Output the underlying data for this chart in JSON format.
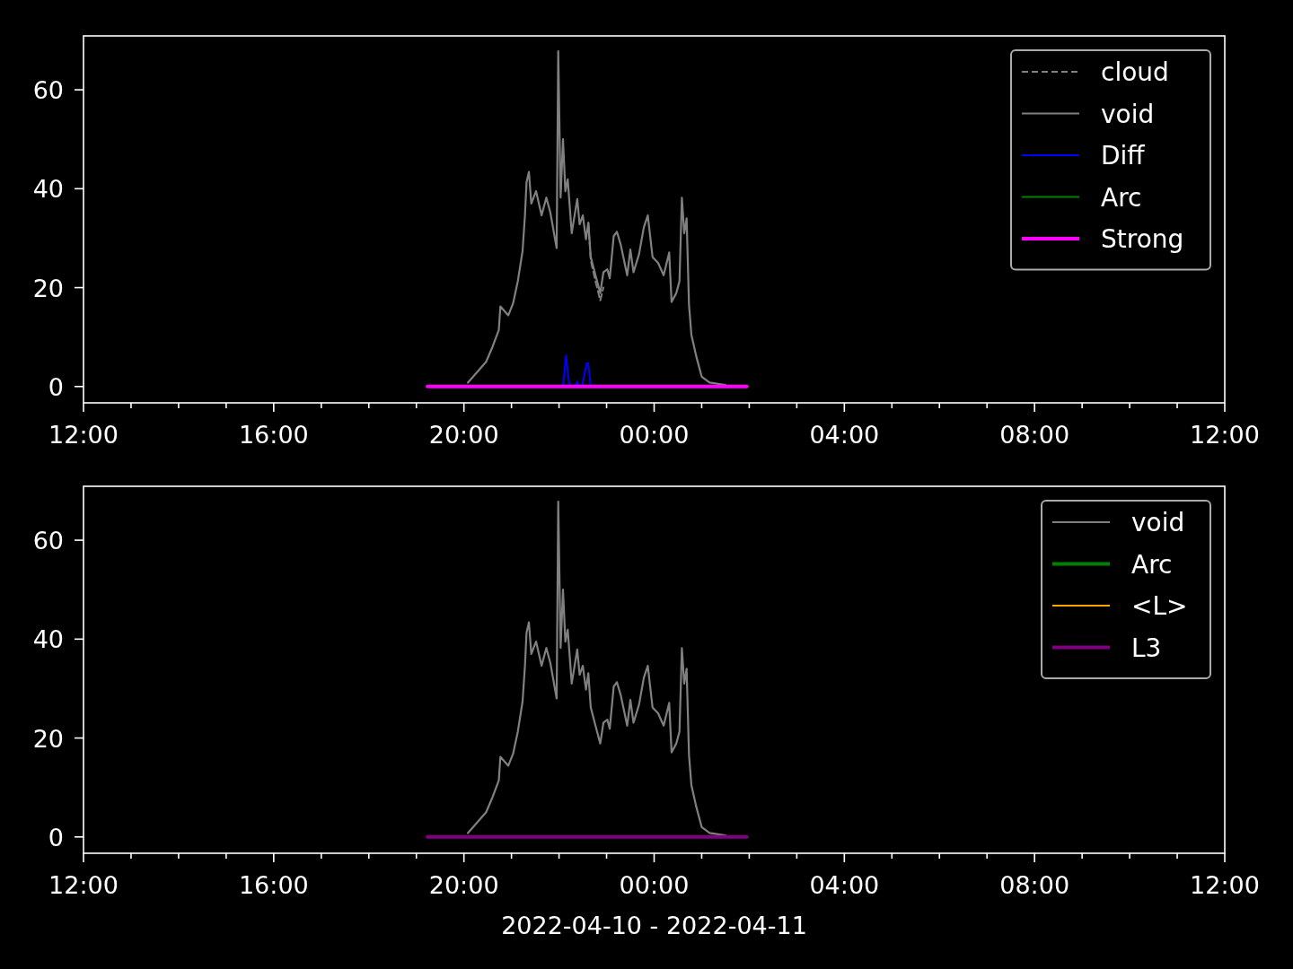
{
  "chart_data": [
    {
      "type": "line",
      "ylim": [
        -3.3,
        70.9
      ],
      "yticks": [
        0,
        20,
        40,
        60
      ],
      "xlim": [
        "2022-04-10T12:00",
        "2022-04-11T12:00"
      ],
      "xticks": [
        {
          "value": "2022-04-10T12:00",
          "label": "12:00"
        },
        {
          "value": "2022-04-10T13:00",
          "label": null
        },
        {
          "value": "2022-04-10T14:00",
          "label": null
        },
        {
          "value": "2022-04-10T15:00",
          "label": null
        },
        {
          "value": "2022-04-10T16:00",
          "label": "16:00"
        },
        {
          "value": "2022-04-10T17:00",
          "label": null
        },
        {
          "value": "2022-04-10T18:00",
          "label": null
        },
        {
          "value": "2022-04-10T19:00",
          "label": null
        },
        {
          "value": "2022-04-10T20:00",
          "label": "20:00"
        },
        {
          "value": "2022-04-10T21:00",
          "label": null
        },
        {
          "value": "2022-04-10T22:00",
          "label": null
        },
        {
          "value": "2022-04-10T23:00",
          "label": null
        },
        {
          "value": "2022-04-11T00:00",
          "label": "00:00"
        },
        {
          "value": "2022-04-11T01:00",
          "label": null
        },
        {
          "value": "2022-04-11T02:00",
          "label": null
        },
        {
          "value": "2022-04-11T03:00",
          "label": null
        },
        {
          "value": "2022-04-11T04:00",
          "label": "04:00"
        },
        {
          "value": "2022-04-11T05:00",
          "label": null
        },
        {
          "value": "2022-04-11T06:00",
          "label": null
        },
        {
          "value": "2022-04-11T07:00",
          "label": null
        },
        {
          "value": "2022-04-11T08:00",
          "label": "08:00"
        },
        {
          "value": "2022-04-11T09:00",
          "label": null
        },
        {
          "value": "2022-04-11T10:00",
          "label": null
        },
        {
          "value": "2022-04-11T11:00",
          "label": null
        },
        {
          "value": "2022-04-11T12:00",
          "label": "12:00"
        }
      ],
      "legend": "top right",
      "series": [
        {
          "name": "cloud",
          "color": "#808080",
          "line_style": "dashed",
          "x": [
            "2022-04-10T22:37",
            "2022-04-10T22:40",
            "2022-04-10T22:46",
            "2022-04-10T22:52",
            "2022-04-10T22:56"
          ],
          "values": [
            33.1,
            25.5,
            21.3,
            17.4,
            20
          ]
        },
        {
          "name": "void",
          "color": "#808080",
          "line_style": "solid",
          "x": [
            "2022-04-10T20:05",
            "2022-04-10T20:28",
            "2022-04-10T20:36",
            "2022-04-10T20:44",
            "2022-04-10T20:46",
            "2022-04-10T20:56",
            "2022-04-10T21:02",
            "2022-04-10T21:08",
            "2022-04-10T21:14",
            "2022-04-10T21:17",
            "2022-04-10T21:19",
            "2022-04-10T21:22",
            "2022-04-10T21:25",
            "2022-04-10T21:31",
            "2022-04-10T21:38",
            "2022-04-10T21:44",
            "2022-04-10T21:49",
            "2022-04-10T21:57",
            "2022-04-10T21:59",
            "2022-04-10T22:02",
            "2022-04-10T22:05",
            "2022-04-10T22:08",
            "2022-04-10T22:11",
            "2022-04-10T22:16",
            "2022-04-10T22:23",
            "2022-04-10T22:26",
            "2022-04-10T22:30",
            "2022-04-10T22:34",
            "2022-04-10T22:37",
            "2022-04-10T22:40",
            "2022-04-10T22:46",
            "2022-04-10T22:52",
            "2022-04-10T22:56",
            "2022-04-10T23:01",
            "2022-04-10T23:04",
            "2022-04-10T23:09",
            "2022-04-10T23:13",
            "2022-04-10T23:18",
            "2022-04-10T23:26",
            "2022-04-10T23:30",
            "2022-04-10T23:34",
            "2022-04-10T23:41",
            "2022-04-10T23:47",
            "2022-04-10T23:52",
            "2022-04-10T23:58",
            "2022-04-11T00:05",
            "2022-04-11T00:12",
            "2022-04-11T00:19",
            "2022-04-11T00:22",
            "2022-04-11T00:28",
            "2022-04-11T00:32",
            "2022-04-11T00:35",
            "2022-04-11T00:38",
            "2022-04-11T00:41",
            "2022-04-11T00:44",
            "2022-04-11T00:47",
            "2022-04-11T00:53",
            "2022-04-11T01:00",
            "2022-04-11T01:10",
            "2022-04-11T01:30"
          ],
          "values": [
            0.8,
            5.0,
            8.0,
            11.4,
            16.2,
            14.4,
            16.8,
            21.3,
            27.4,
            34.6,
            41.3,
            43.4,
            37.0,
            39.5,
            34.6,
            38.2,
            35.2,
            28.0,
            67.8,
            38.2,
            50.0,
            39.5,
            41.9,
            31.0,
            37.9,
            32.8,
            34.6,
            29.8,
            33.1,
            26.2,
            22.5,
            18.9,
            23.1,
            23.7,
            21.9,
            30.4,
            31.3,
            28.6,
            22.5,
            27.7,
            23.1,
            26.8,
            32.2,
            34.6,
            26.2,
            25.0,
            22.5,
            27.1,
            17.1,
            18.9,
            21.3,
            38.2,
            31.0,
            34.0,
            16.5,
            10.5,
            6.2,
            2.0,
            0.8,
            0.3
          ]
        },
        {
          "name": "Diff",
          "color": "#0000ff",
          "line_style": "solid",
          "x": [
            "2022-04-10T22:05",
            "2022-04-10T22:09",
            "2022-04-10T22:12",
            "2022-04-10T22:14",
            "2022-04-10T22:21",
            "2022-04-10T22:23",
            "2022-04-10T22:25",
            "2022-04-10T22:29",
            "2022-04-10T22:35",
            "2022-04-10T22:37",
            "2022-04-10T22:40"
          ],
          "values": [
            0,
            6.3,
            1.5,
            0,
            0,
            1.0,
            0,
            0,
            4.7,
            4.7,
            0
          ]
        },
        {
          "name": "Arc",
          "color": "#008000",
          "line_style": "solid"
        },
        {
          "name": "Strong",
          "color": "#ff00ff",
          "line_style": "solid",
          "x": [
            "2022-04-10T19:14",
            "2022-04-11T01:57"
          ],
          "values": [
            0,
            0
          ]
        }
      ]
    },
    {
      "type": "line",
      "ylim": [
        -3.3,
        70.9
      ],
      "yticks": [
        0,
        20,
        40,
        60
      ],
      "xlim": [
        "2022-04-10T12:00",
        "2022-04-11T12:00"
      ],
      "xlabel": "2022-04-10 - 2022-04-11",
      "xticks": [
        {
          "value": "2022-04-10T12:00",
          "label": "12:00"
        },
        {
          "value": "2022-04-10T13:00",
          "label": null
        },
        {
          "value": "2022-04-10T14:00",
          "label": null
        },
        {
          "value": "2022-04-10T15:00",
          "label": null
        },
        {
          "value": "2022-04-10T16:00",
          "label": "16:00"
        },
        {
          "value": "2022-04-10T17:00",
          "label": null
        },
        {
          "value": "2022-04-10T18:00",
          "label": null
        },
        {
          "value": "2022-04-10T19:00",
          "label": null
        },
        {
          "value": "2022-04-10T20:00",
          "label": "20:00"
        },
        {
          "value": "2022-04-10T21:00",
          "label": null
        },
        {
          "value": "2022-04-10T22:00",
          "label": null
        },
        {
          "value": "2022-04-10T23:00",
          "label": null
        },
        {
          "value": "2022-04-11T00:00",
          "label": "00:00"
        },
        {
          "value": "2022-04-11T01:00",
          "label": null
        },
        {
          "value": "2022-04-11T02:00",
          "label": null
        },
        {
          "value": "2022-04-11T03:00",
          "label": null
        },
        {
          "value": "2022-04-11T04:00",
          "label": "04:00"
        },
        {
          "value": "2022-04-11T05:00",
          "label": null
        },
        {
          "value": "2022-04-11T06:00",
          "label": null
        },
        {
          "value": "2022-04-11T07:00",
          "label": null
        },
        {
          "value": "2022-04-11T08:00",
          "label": "08:00"
        },
        {
          "value": "2022-04-11T09:00",
          "label": null
        },
        {
          "value": "2022-04-11T10:00",
          "label": null
        },
        {
          "value": "2022-04-11T11:00",
          "label": null
        },
        {
          "value": "2022-04-11T12:00",
          "label": "12:00"
        }
      ],
      "legend": "top right",
      "series": [
        {
          "name": "void",
          "color": "#808080",
          "line_style": "solid",
          "x": [
            "2022-04-10T20:05",
            "2022-04-10T20:28",
            "2022-04-10T20:36",
            "2022-04-10T20:44",
            "2022-04-10T20:46",
            "2022-04-10T20:56",
            "2022-04-10T21:02",
            "2022-04-10T21:08",
            "2022-04-10T21:14",
            "2022-04-10T21:17",
            "2022-04-10T21:19",
            "2022-04-10T21:22",
            "2022-04-10T21:25",
            "2022-04-10T21:31",
            "2022-04-10T21:38",
            "2022-04-10T21:44",
            "2022-04-10T21:49",
            "2022-04-10T21:57",
            "2022-04-10T21:59",
            "2022-04-10T22:02",
            "2022-04-10T22:05",
            "2022-04-10T22:08",
            "2022-04-10T22:11",
            "2022-04-10T22:16",
            "2022-04-10T22:23",
            "2022-04-10T22:26",
            "2022-04-10T22:30",
            "2022-04-10T22:34",
            "2022-04-10T22:37",
            "2022-04-10T22:40",
            "2022-04-10T22:46",
            "2022-04-10T22:52",
            "2022-04-10T22:56",
            "2022-04-10T23:01",
            "2022-04-10T23:04",
            "2022-04-10T23:09",
            "2022-04-10T23:13",
            "2022-04-10T23:18",
            "2022-04-10T23:26",
            "2022-04-10T23:30",
            "2022-04-10T23:34",
            "2022-04-10T23:41",
            "2022-04-10T23:47",
            "2022-04-10T23:52",
            "2022-04-10T23:58",
            "2022-04-11T00:05",
            "2022-04-11T00:12",
            "2022-04-11T00:19",
            "2022-04-11T00:22",
            "2022-04-11T00:28",
            "2022-04-11T00:32",
            "2022-04-11T00:35",
            "2022-04-11T00:38",
            "2022-04-11T00:41",
            "2022-04-11T00:44",
            "2022-04-11T00:47",
            "2022-04-11T00:53",
            "2022-04-11T01:00",
            "2022-04-11T01:10",
            "2022-04-11T01:30"
          ],
          "values": [
            0.8,
            5.0,
            8.0,
            11.4,
            16.2,
            14.4,
            16.8,
            21.3,
            27.4,
            34.6,
            41.3,
            43.4,
            37.0,
            39.5,
            34.6,
            38.2,
            35.2,
            28.0,
            67.8,
            38.2,
            50.0,
            39.5,
            41.9,
            31.0,
            37.9,
            32.8,
            34.6,
            29.8,
            33.1,
            26.2,
            22.5,
            18.9,
            23.1,
            23.7,
            21.9,
            30.4,
            31.3,
            28.6,
            22.5,
            27.7,
            23.1,
            26.8,
            32.2,
            34.6,
            26.2,
            25.0,
            22.5,
            27.1,
            17.1,
            18.9,
            21.3,
            38.2,
            31.0,
            34.0,
            16.5,
            10.5,
            6.2,
            2.0,
            0.8,
            0.3
          ]
        },
        {
          "name": "Arc",
          "color": "#008000",
          "line_style": "solid"
        },
        {
          "name": "<L>",
          "color": "#ffa500",
          "line_style": "solid"
        },
        {
          "name": "L3",
          "color": "#800080",
          "line_style": "solid",
          "x": [
            "2022-04-10T19:14",
            "2022-04-11T01:57"
          ],
          "values": [
            0,
            0
          ]
        }
      ]
    }
  ]
}
